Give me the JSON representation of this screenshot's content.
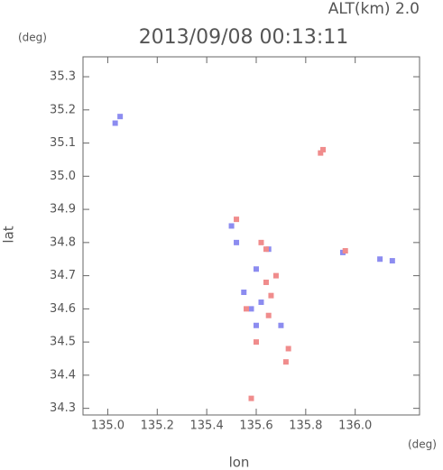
{
  "chart_data": {
    "type": "scatter",
    "title": "2013/09/08 00:13:11",
    "subtitle": "ALT(km) 2.0",
    "x_label": "lon",
    "y_label": "lat",
    "x_unit": "(deg)",
    "y_unit": "(deg)",
    "xlim": [
      134.9,
      136.26
    ],
    "ylim": [
      34.28,
      35.36
    ],
    "xticks": [
      {
        "value": 135,
        "label": "135.0"
      },
      135.2,
      135.4,
      135.6,
      135.8,
      {
        "value": 136,
        "label": "136.0"
      }
    ],
    "yticks": [
      34.3,
      34.4,
      34.5,
      34.6,
      34.7,
      34.8,
      34.9,
      {
        "value": 35,
        "label": "35.0"
      },
      35.1,
      35.2,
      35.3
    ],
    "series": [
      {
        "color": "#8c8cf0",
        "x": [
          135.05,
          135.03,
          135.5,
          135.52,
          135.6,
          135.55,
          135.58,
          135.62,
          135.65,
          136.1,
          136.15,
          135.95,
          135.7,
          135.6
        ],
        "y": [
          35.18,
          35.16,
          34.85,
          34.8,
          34.72,
          34.65,
          34.6,
          34.62,
          34.78,
          34.75,
          34.745,
          34.77,
          34.55,
          34.55
        ]
      },
      {
        "color": "#f08c8c",
        "x": [
          135.87,
          135.86,
          135.52,
          135.62,
          135.64,
          135.68,
          135.56,
          135.66,
          135.6,
          135.73,
          135.72,
          135.58,
          135.65,
          135.64,
          135.96
        ],
        "y": [
          35.08,
          35.07,
          34.87,
          34.8,
          34.78,
          34.7,
          34.6,
          34.64,
          34.5,
          34.48,
          34.44,
          34.33,
          34.58,
          34.68,
          34.775
        ]
      }
    ]
  }
}
